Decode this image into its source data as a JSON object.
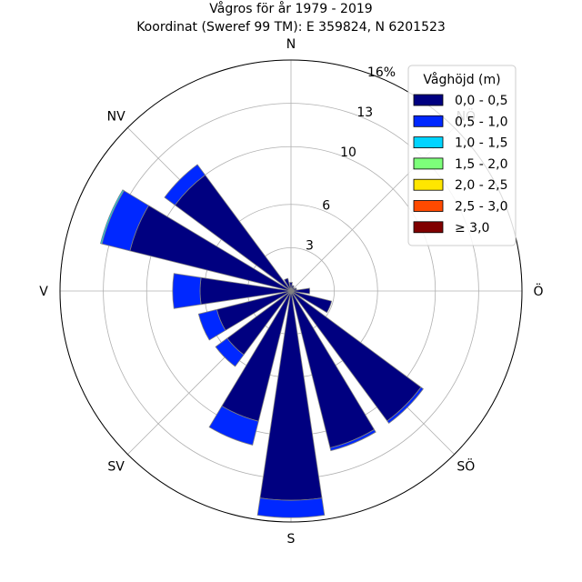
{
  "chart_data": {
    "type": "windrose",
    "title": "Vågros för år 1979 - 2019",
    "subtitle": "Koordinat (Sweref 99 TM): E 359824, N 6201523",
    "directions": [
      "N",
      "NNÖ",
      "NÖ",
      "ÖNÖ",
      "Ö",
      "ÖSÖ",
      "SÖ",
      "SSÖ",
      "S",
      "SSV",
      "SV",
      "VSV",
      "V",
      "VNV",
      "NV",
      "NNV"
    ],
    "direction_labels": [
      {
        "dir": "N",
        "label": "N"
      },
      {
        "dir": "NÖ",
        "label": "NÖ"
      },
      {
        "dir": "Ö",
        "label": "Ö"
      },
      {
        "dir": "SÖ",
        "label": "SÖ"
      },
      {
        "dir": "S",
        "label": "S"
      },
      {
        "dir": "SV",
        "label": "SV"
      },
      {
        "dir": "V",
        "label": "V"
      },
      {
        "dir": "NV",
        "label": "NV"
      }
    ],
    "radial_ticks": [
      3,
      6,
      10,
      13,
      16
    ],
    "radial_tick_labels": [
      "3",
      "6",
      "10",
      "13",
      "16%"
    ],
    "rmax": 16,
    "legend": {
      "title": "Våghöjd (m)",
      "placement": "top-right"
    },
    "series": [
      {
        "name": "0,0 - 0,5",
        "color": "#000080",
        "values": [
          0.6,
          0.4,
          0.3,
          0.4,
          1.3,
          2.9,
          11.2,
          11.2,
          14.5,
          9.3,
          5.5,
          5.3,
          6.3,
          11.5,
          10.0,
          0.9
        ]
      },
      {
        "name": "0,5 - 1,0",
        "color": "#0028ff",
        "values": [
          0.0,
          0.0,
          0.0,
          0.0,
          0.0,
          0.0,
          0.2,
          0.2,
          1.2,
          1.7,
          1.0,
          1.3,
          1.9,
          2.0,
          0.9,
          0.0
        ]
      },
      {
        "name": "1,0 - 1,5",
        "color": "#00d4ff",
        "values": [
          0,
          0,
          0,
          0,
          0,
          0,
          0,
          0,
          0,
          0,
          0,
          0,
          0,
          0.1,
          0,
          0
        ]
      },
      {
        "name": "1,5 - 2,0",
        "color": "#7dff7a",
        "values": [
          0,
          0,
          0,
          0,
          0,
          0,
          0,
          0,
          0,
          0,
          0,
          0,
          0,
          0,
          0,
          0
        ]
      },
      {
        "name": "2,0 - 2,5",
        "color": "#ffe600",
        "values": [
          0,
          0,
          0,
          0,
          0,
          0,
          0,
          0,
          0,
          0,
          0,
          0,
          0,
          0,
          0,
          0
        ]
      },
      {
        "name": "2,5 - 3,0",
        "color": "#ff4a00",
        "values": [
          0,
          0,
          0,
          0,
          0,
          0,
          0,
          0,
          0,
          0,
          0,
          0,
          0,
          0,
          0,
          0
        ]
      },
      {
        "name": "≥ 3,0",
        "color": "#800000",
        "values": [
          0,
          0,
          0,
          0,
          0,
          0,
          0,
          0,
          0,
          0,
          0,
          0,
          0,
          0,
          0,
          0
        ]
      }
    ],
    "grid": true
  }
}
